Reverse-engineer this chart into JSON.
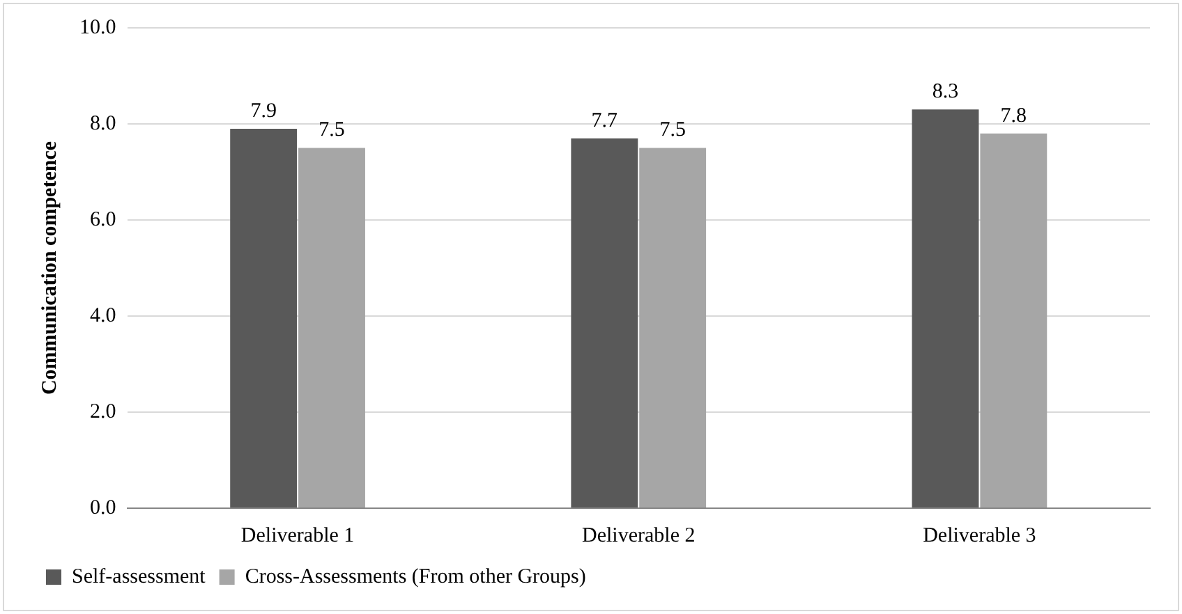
{
  "chart_data": {
    "type": "bar",
    "ylabel": "Communication competence",
    "categories": [
      "Deliverable 1",
      "Deliverable 2",
      "Deliverable 3"
    ],
    "series": [
      {
        "name": "Self-assessment",
        "color": "#595959",
        "values": [
          7.9,
          7.7,
          8.3
        ]
      },
      {
        "name": "Cross-Assessments (From other Groups)",
        "color": "#a6a6a6",
        "values": [
          7.5,
          7.5,
          7.8
        ]
      }
    ],
    "ylim": [
      0,
      10
    ],
    "yticks": [
      {
        "value": 0,
        "label": "0.0"
      },
      {
        "value": 2,
        "label": "2.0"
      },
      {
        "value": 4,
        "label": "4.0"
      },
      {
        "value": 6,
        "label": "6.0"
      },
      {
        "value": 8,
        "label": "8.0"
      },
      {
        "value": 10,
        "label": "10.0"
      }
    ],
    "grid": "y",
    "legend": "bottom",
    "data_labels": true
  }
}
